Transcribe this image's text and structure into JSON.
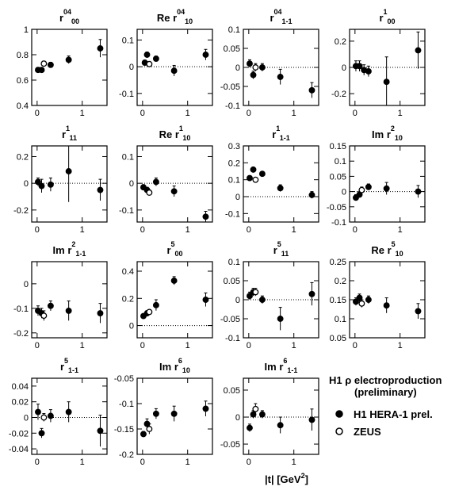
{
  "chart_data": [
    {
      "type": "scatter",
      "title": {
        "prefix": "",
        "symbol": "r",
        "sup": "04",
        "sub": "00"
      },
      "xlim": [
        -0.12,
        1.55
      ],
      "xticks": [
        0,
        1
      ],
      "ylim": [
        0.4,
        1
      ],
      "yticks": [
        0.4,
        0.6,
        0.8,
        1
      ],
      "zero_line": false,
      "series": [
        {
          "marker": "filled",
          "color": "#000000",
          "x": [
            0.02,
            0.1,
            0.3,
            0.7,
            1.4
          ],
          "values": [
            0.68,
            0.68,
            0.72,
            0.76,
            0.85
          ],
          "errors": [
            0.02,
            0.02,
            0.02,
            0.03,
            0.07
          ]
        },
        {
          "marker": "open",
          "color": "#000000",
          "x": [
            0.15
          ],
          "values": [
            0.73
          ],
          "errors": [
            0.02
          ]
        }
      ]
    },
    {
      "type": "scatter",
      "title": {
        "prefix": "Re",
        "symbol": "r",
        "sup": "04",
        "sub": "10"
      },
      "xlim": [
        -0.12,
        1.55
      ],
      "xticks": [
        0,
        1
      ],
      "ylim": [
        -0.145,
        0.14
      ],
      "yticks": [
        -0.1,
        0,
        0.1
      ],
      "zero_line": true,
      "series": [
        {
          "marker": "filled",
          "color": "#000000",
          "x": [
            0.05,
            0.1,
            0.3,
            0.7,
            1.4
          ],
          "values": [
            0.015,
            0.045,
            0.03,
            -0.015,
            0.045
          ],
          "errors": [
            0.01,
            0.01,
            0.01,
            0.02,
            0.02
          ]
        },
        {
          "marker": "open",
          "color": "#000000",
          "x": [
            0.15
          ],
          "values": [
            0.01
          ],
          "errors": [
            0.01
          ]
        }
      ]
    },
    {
      "type": "scatter",
      "title": {
        "prefix": "",
        "symbol": "r",
        "sup": "04",
        "sub": "1-1"
      },
      "xlim": [
        -0.12,
        1.55
      ],
      "xticks": [
        0,
        1
      ],
      "ylim": [
        -0.1,
        0.1
      ],
      "yticks": [
        -0.1,
        -0.05,
        0,
        0.05,
        0.1
      ],
      "zero_line": true,
      "series": [
        {
          "marker": "filled",
          "color": "#000000",
          "x": [
            0.02,
            0.1,
            0.3,
            0.7,
            1.4
          ],
          "values": [
            0.01,
            -0.02,
            0.0,
            -0.025,
            -0.06
          ],
          "errors": [
            0.01,
            0.01,
            0.01,
            0.02,
            0.02
          ]
        },
        {
          "marker": "open",
          "color": "#000000",
          "x": [
            0.15
          ],
          "values": [
            0.0
          ],
          "errors": [
            0.01
          ]
        }
      ]
    },
    {
      "type": "scatter",
      "title": {
        "prefix": "",
        "symbol": "r",
        "sup": "1",
        "sub": "00"
      },
      "xlim": [
        -0.12,
        1.55
      ],
      "xticks": [
        0,
        1
      ],
      "ylim": [
        -0.29,
        0.29
      ],
      "yticks": [
        -0.2,
        0,
        0.2
      ],
      "zero_line": true,
      "series": [
        {
          "marker": "filled",
          "color": "#000000",
          "x": [
            0.02,
            0.1,
            0.2,
            0.3,
            0.7,
            1.4
          ],
          "values": [
            0.01,
            0.01,
            -0.02,
            -0.03,
            -0.11,
            0.13
          ],
          "errors": [
            0.04,
            0.04,
            0.04,
            0.04,
            0.19,
            0.14
          ]
        }
      ]
    },
    {
      "type": "scatter",
      "title": {
        "prefix": "",
        "symbol": "r",
        "sup": "1",
        "sub": "11"
      },
      "xlim": [
        -0.12,
        1.55
      ],
      "xticks": [
        0,
        1
      ],
      "ylim": [
        -0.29,
        0.28
      ],
      "yticks": [
        -0.2,
        0,
        0.2
      ],
      "zero_line": true,
      "series": [
        {
          "marker": "filled",
          "color": "#000000",
          "x": [
            0.02,
            0.1,
            0.3,
            0.7,
            1.4
          ],
          "values": [
            0.01,
            -0.02,
            -0.01,
            0.09,
            -0.05
          ],
          "errors": [
            0.03,
            0.05,
            0.05,
            0.23,
            0.08
          ]
        }
      ]
    },
    {
      "type": "scatter",
      "title": {
        "prefix": "Re",
        "symbol": "r",
        "sup": "1",
        "sub": "10"
      },
      "xlim": [
        -0.12,
        1.55
      ],
      "xticks": [
        0,
        1
      ],
      "ylim": [
        -0.145,
        0.14
      ],
      "yticks": [
        -0.1,
        0,
        0.1
      ],
      "zero_line": true,
      "series": [
        {
          "marker": "filled",
          "color": "#000000",
          "x": [
            0.02,
            0.1,
            0.3,
            0.7,
            1.4
          ],
          "values": [
            -0.015,
            -0.025,
            0.005,
            -0.03,
            -0.125
          ],
          "errors": [
            0.01,
            0.01,
            0.015,
            0.02,
            0.02
          ]
        },
        {
          "marker": "open",
          "color": "#000000",
          "x": [
            0.15
          ],
          "values": [
            -0.035
          ],
          "errors": [
            0.01
          ]
        }
      ]
    },
    {
      "type": "scatter",
      "title": {
        "prefix": "",
        "symbol": "r",
        "sup": "1",
        "sub": "1-1"
      },
      "xlim": [
        -0.12,
        1.55
      ],
      "xticks": [
        0,
        1
      ],
      "ylim": [
        -0.15,
        0.3
      ],
      "yticks": [
        -0.1,
        0,
        0.1,
        0.2,
        0.3
      ],
      "zero_line": true,
      "series": [
        {
          "marker": "filled",
          "color": "#000000",
          "x": [
            0.02,
            0.1,
            0.3,
            0.7,
            1.4
          ],
          "values": [
            0.11,
            0.16,
            0.135,
            0.05,
            0.01
          ],
          "errors": [
            0.01,
            0.01,
            0.01,
            0.02,
            0.02
          ]
        },
        {
          "marker": "open",
          "color": "#000000",
          "x": [
            0.15
          ],
          "values": [
            0.1
          ],
          "errors": [
            0.01
          ]
        }
      ]
    },
    {
      "type": "scatter",
      "title": {
        "prefix": "Im",
        "symbol": "r",
        "sup": "2",
        "sub": "10"
      },
      "xlim": [
        -0.12,
        1.55
      ],
      "xticks": [
        0,
        1
      ],
      "ylim": [
        -0.1,
        0.15
      ],
      "yticks": [
        -0.1,
        -0.05,
        0,
        0.05,
        0.1,
        0.15
      ],
      "zero_line": true,
      "series": [
        {
          "marker": "filled",
          "color": "#000000",
          "x": [
            0.02,
            0.1,
            0.3,
            0.7,
            1.4
          ],
          "values": [
            -0.02,
            -0.01,
            0.015,
            0.01,
            0.0
          ],
          "errors": [
            0.01,
            0.01,
            0.01,
            0.02,
            0.02
          ]
        },
        {
          "marker": "open",
          "color": "#000000",
          "x": [
            0.15
          ],
          "values": [
            0.005
          ],
          "errors": [
            0.01
          ]
        }
      ]
    },
    {
      "type": "scatter",
      "title": {
        "prefix": "Im",
        "symbol": "r",
        "sup": "2",
        "sub": "1-1"
      },
      "xlim": [
        -0.12,
        1.55
      ],
      "xticks": [
        0,
        1
      ],
      "ylim": [
        -0.22,
        0.09
      ],
      "yticks": [
        -0.2,
        -0.1,
        0
      ],
      "zero_line": false,
      "series": [
        {
          "marker": "filled",
          "color": "#000000",
          "x": [
            0.02,
            0.1,
            0.3,
            0.7,
            1.4
          ],
          "values": [
            -0.11,
            -0.12,
            -0.09,
            -0.11,
            -0.12
          ],
          "errors": [
            0.02,
            0.02,
            0.02,
            0.04,
            0.04
          ]
        },
        {
          "marker": "open",
          "color": "#000000",
          "x": [
            0.15
          ],
          "values": [
            -0.13
          ],
          "errors": [
            0.02
          ]
        }
      ]
    },
    {
      "type": "scatter",
      "title": {
        "prefix": "",
        "symbol": "r",
        "sup": "5",
        "sub": "00"
      },
      "xlim": [
        -0.12,
        1.55
      ],
      "xticks": [
        0,
        1
      ],
      "ylim": [
        -0.09,
        0.47
      ],
      "yticks": [
        0,
        0.2,
        0.4
      ],
      "zero_line": true,
      "series": [
        {
          "marker": "filled",
          "color": "#000000",
          "x": [
            0.02,
            0.1,
            0.3,
            0.7,
            1.4
          ],
          "values": [
            0.07,
            0.09,
            0.15,
            0.33,
            0.19
          ],
          "errors": [
            0.01,
            0.02,
            0.04,
            0.03,
            0.05
          ]
        },
        {
          "marker": "open",
          "color": "#000000",
          "x": [
            0.15
          ],
          "values": [
            0.1
          ],
          "errors": [
            0.01
          ]
        }
      ]
    },
    {
      "type": "scatter",
      "title": {
        "prefix": "",
        "symbol": "r",
        "sup": "5",
        "sub": "11"
      },
      "xlim": [
        -0.12,
        1.55
      ],
      "xticks": [
        0,
        1
      ],
      "ylim": [
        -0.1,
        0.1
      ],
      "yticks": [
        -0.1,
        -0.05,
        0,
        0.05,
        0.1
      ],
      "zero_line": true,
      "series": [
        {
          "marker": "filled",
          "color": "#000000",
          "x": [
            0.02,
            0.1,
            0.3,
            0.7,
            1.4
          ],
          "values": [
            0.01,
            0.02,
            0.0,
            -0.05,
            0.015
          ],
          "errors": [
            0.01,
            0.01,
            0.01,
            0.03,
            0.03
          ]
        },
        {
          "marker": "open",
          "color": "#000000",
          "x": [
            0.15
          ],
          "values": [
            0.02
          ],
          "errors": [
            0.01
          ]
        }
      ]
    },
    {
      "type": "scatter",
      "title": {
        "prefix": "Re",
        "symbol": "r",
        "sup": "5",
        "sub": "10"
      },
      "xlim": [
        -0.12,
        1.55
      ],
      "xticks": [
        0,
        1
      ],
      "ylim": [
        0.05,
        0.25
      ],
      "yticks": [
        0.05,
        0.1,
        0.15,
        0.2,
        0.25
      ],
      "zero_line": false,
      "series": [
        {
          "marker": "filled",
          "color": "#000000",
          "x": [
            0.02,
            0.1,
            0.3,
            0.7,
            1.4
          ],
          "values": [
            0.145,
            0.155,
            0.15,
            0.135,
            0.12
          ],
          "errors": [
            0.01,
            0.01,
            0.01,
            0.02,
            0.02
          ]
        },
        {
          "marker": "open",
          "color": "#000000",
          "x": [
            0.15
          ],
          "values": [
            0.14
          ],
          "errors": [
            0.01
          ]
        }
      ]
    },
    {
      "type": "scatter",
      "title": {
        "prefix": "",
        "symbol": "r",
        "sup": "5",
        "sub": "1-1"
      },
      "xlim": [
        -0.12,
        1.55
      ],
      "xticks": [
        0,
        1
      ],
      "ylim": [
        -0.047,
        0.05
      ],
      "yticks": [
        -0.04,
        -0.02,
        0,
        0.02,
        0.04
      ],
      "zero_line": true,
      "series": [
        {
          "marker": "filled",
          "color": "#000000",
          "x": [
            0.02,
            0.1,
            0.3,
            0.7,
            1.4
          ],
          "values": [
            0.007,
            -0.02,
            0.002,
            0.007,
            -0.017
          ],
          "errors": [
            0.01,
            0.006,
            0.008,
            0.013,
            0.02
          ]
        },
        {
          "marker": "open",
          "color": "#000000",
          "x": [
            0.15
          ],
          "values": [
            0.0
          ],
          "errors": [
            0.005
          ]
        }
      ]
    },
    {
      "type": "scatter",
      "title": {
        "prefix": "Im",
        "symbol": "r",
        "sup": "6",
        "sub": "10"
      },
      "xlim": [
        -0.12,
        1.55
      ],
      "xticks": [
        0,
        1
      ],
      "ylim": [
        -0.2,
        -0.05
      ],
      "yticks": [
        -0.2,
        -0.15,
        -0.1,
        -0.05
      ],
      "zero_line": false,
      "series": [
        {
          "marker": "filled",
          "color": "#000000",
          "x": [
            0.02,
            0.1,
            0.3,
            0.7,
            1.4
          ],
          "values": [
            -0.16,
            -0.14,
            -0.12,
            -0.12,
            -0.11
          ],
          "errors": [
            0.005,
            0.01,
            0.01,
            0.015,
            0.015
          ]
        },
        {
          "marker": "open",
          "color": "#000000",
          "x": [
            0.15
          ],
          "values": [
            -0.15
          ],
          "errors": [
            0.01
          ]
        }
      ]
    },
    {
      "type": "scatter",
      "title": {
        "prefix": "Im",
        "symbol": "r",
        "sup": "6",
        "sub": "1-1"
      },
      "xlim": [
        -0.12,
        1.55
      ],
      "xticks": [
        0,
        1
      ],
      "ylim": [
        -0.069,
        0.072
      ],
      "yticks": [
        -0.05,
        0,
        0.05
      ],
      "zero_line": true,
      "series": [
        {
          "marker": "filled",
          "color": "#000000",
          "x": [
            0.02,
            0.1,
            0.3,
            0.7,
            1.4
          ],
          "values": [
            -0.02,
            0.005,
            0.005,
            -0.015,
            -0.005
          ],
          "errors": [
            0.007,
            0.007,
            0.007,
            0.015,
            0.02
          ]
        },
        {
          "marker": "open",
          "color": "#000000",
          "x": [
            0.15
          ],
          "values": [
            0.015
          ],
          "errors": [
            0.01
          ]
        }
      ]
    }
  ],
  "figure": {
    "note": [
      "H1 ρ electroproduction",
      "(preliminary)"
    ],
    "legend": [
      {
        "name": "H1 HERA-1 prel.",
        "marker": "filled"
      },
      {
        "name": "ZEUS",
        "marker": "open"
      }
    ],
    "xlabel": {
      "text": "|t|  [GeV",
      "sup": "2",
      "close": "]"
    }
  }
}
